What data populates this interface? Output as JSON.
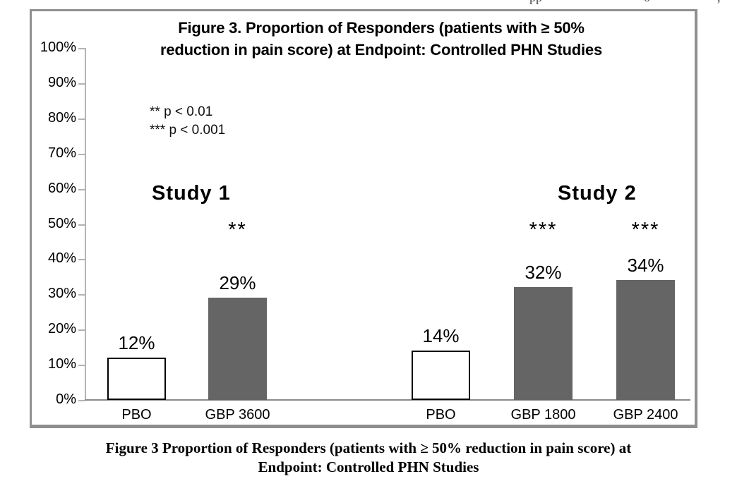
{
  "cropped_header_fragments": [
    "pp",
    "o",
    ","
  ],
  "figure": {
    "title_lines": [
      "Figure 3. Proportion of Responders (patients with ≥ 50%",
      "reduction in pain score) at Endpoint: Controlled PHN Studies"
    ],
    "caption_lines": [
      "Figure 3 Proportion of Responders (patients with ≥ 50% reduction in pain score) at",
      "Endpoint: Controlled PHN Studies"
    ]
  },
  "chart_data": {
    "type": "bar",
    "title": "Figure 3. Proportion of Responders (patients with ≥ 50% reduction in pain score) at Endpoint: Controlled PHN Studies",
    "xlabel": "",
    "ylabel": "",
    "ylim": [
      0,
      100
    ],
    "ytick_step": 10,
    "ytick_suffix": "%",
    "grid": false,
    "legend": null,
    "annotations": [
      "** p < 0.01",
      "*** p < 0.001"
    ],
    "bar_colors": {
      "placebo": "#ffffff",
      "active": "#656565"
    },
    "frame_color": "#8f8f8f",
    "groups": [
      {
        "label": "Study 1",
        "bars": [
          {
            "category": "PBO",
            "value_pct": 12,
            "style": "placebo",
            "significance": ""
          },
          {
            "category": "GBP 3600",
            "value_pct": 29,
            "style": "active",
            "significance": "**"
          }
        ]
      },
      {
        "label": "Study 2",
        "bars": [
          {
            "category": "PBO",
            "value_pct": 14,
            "style": "placebo",
            "significance": ""
          },
          {
            "category": "GBP 1800",
            "value_pct": 32,
            "style": "active",
            "significance": "***"
          },
          {
            "category": "GBP 2400",
            "value_pct": 34,
            "style": "active",
            "significance": "***"
          }
        ]
      }
    ]
  }
}
